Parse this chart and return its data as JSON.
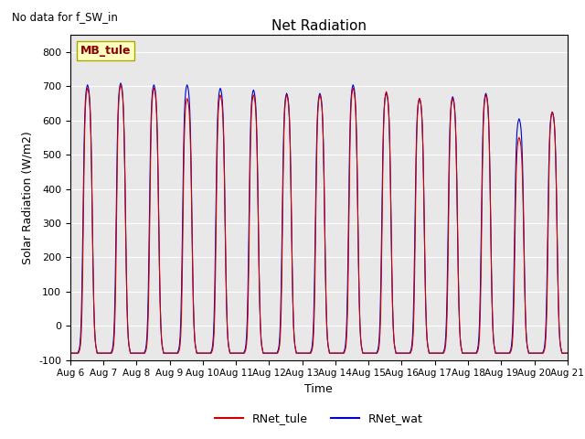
{
  "title": "Net Radiation",
  "subtitle": "No data for f_SW_in",
  "ylabel": "Solar Radiation (W/m2)",
  "xlabel": "Time",
  "ylim": [
    -100,
    850
  ],
  "yticks": [
    -100,
    0,
    100,
    200,
    300,
    400,
    500,
    600,
    700,
    800
  ],
  "legend_label1": "RNet_tule",
  "legend_label2": "RNet_wat",
  "color1": "#cc0000",
  "color2": "#0000cc",
  "watermark_text": "MB_tule",
  "background_color": "#e8e8e8",
  "n_days": 15,
  "start_day": 6,
  "peaks_tule": [
    700,
    710,
    700,
    670,
    680,
    680,
    680,
    680,
    700,
    690,
    670,
    670,
    680,
    555,
    630
  ],
  "peaks_wat": [
    710,
    715,
    710,
    710,
    700,
    695,
    685,
    685,
    710,
    685,
    670,
    675,
    685,
    610,
    630
  ],
  "night_val": -80,
  "hours_per_day": 24,
  "pts_per_hour": 2
}
